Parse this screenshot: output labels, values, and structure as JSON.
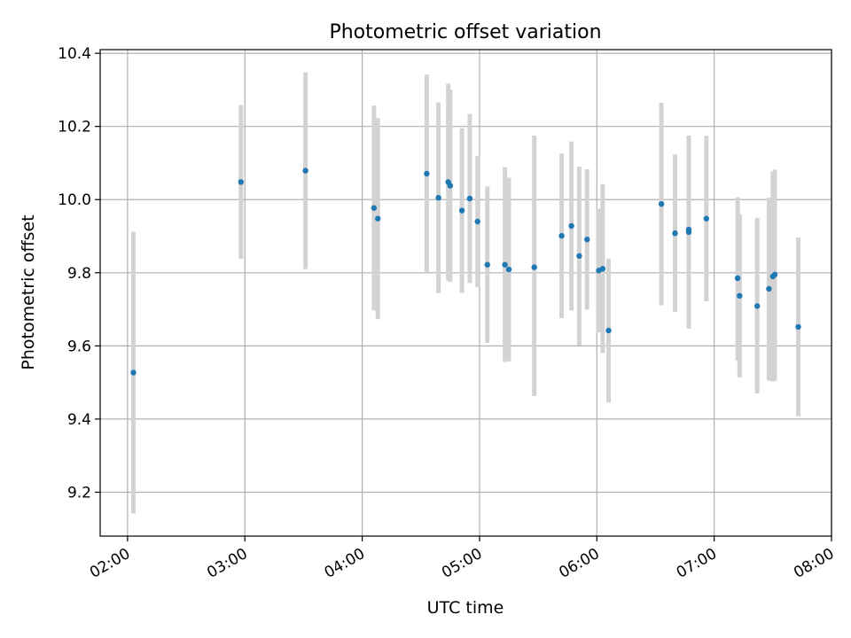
{
  "chart_data": {
    "type": "scatter",
    "title": "Photometric offset variation",
    "xlabel": "UTC time",
    "ylabel": "Photometric offset",
    "xlim": [
      "01:46",
      "08:00"
    ],
    "ylim": [
      9.08,
      10.41
    ],
    "xticks": [
      "02:00",
      "03:00",
      "04:00",
      "05:00",
      "06:00",
      "07:00",
      "08:00"
    ],
    "yticks": [
      "9.2",
      "9.4",
      "9.6",
      "9.8",
      "10.0",
      "10.2",
      "10.4"
    ],
    "grid": true,
    "colors": {
      "point": "#1f77b4",
      "errorbar": "#d3d3d3",
      "grid": "#b0b0b0"
    },
    "points": [
      {
        "x": "02:03",
        "y": 9.527,
        "ylo": 9.142,
        "yhi": 9.912
      },
      {
        "x": "02:58",
        "y": 10.048,
        "ylo": 9.838,
        "yhi": 10.258
      },
      {
        "x": "03:31",
        "y": 10.079,
        "ylo": 9.81,
        "yhi": 10.348
      },
      {
        "x": "04:06",
        "y": 9.977,
        "ylo": 9.697,
        "yhi": 10.257
      },
      {
        "x": "04:08",
        "y": 9.948,
        "ylo": 9.673,
        "yhi": 10.223
      },
      {
        "x": "04:33",
        "y": 10.071,
        "ylo": 9.8,
        "yhi": 10.342
      },
      {
        "x": "04:39",
        "y": 10.005,
        "ylo": 9.744,
        "yhi": 10.266
      },
      {
        "x": "04:44",
        "y": 10.048,
        "ylo": 9.779,
        "yhi": 10.317
      },
      {
        "x": "04:45",
        "y": 10.038,
        "ylo": 9.775,
        "yhi": 10.301
      },
      {
        "x": "04:51",
        "y": 9.97,
        "ylo": 9.745,
        "yhi": 10.195
      },
      {
        "x": "04:55",
        "y": 10.003,
        "ylo": 9.772,
        "yhi": 10.234
      },
      {
        "x": "04:59",
        "y": 9.94,
        "ylo": 9.76,
        "yhi": 10.12
      },
      {
        "x": "05:04",
        "y": 9.822,
        "ylo": 9.608,
        "yhi": 10.036
      },
      {
        "x": "05:13",
        "y": 9.822,
        "ylo": 9.556,
        "yhi": 10.088
      },
      {
        "x": "05:15",
        "y": 9.809,
        "ylo": 9.558,
        "yhi": 10.06
      },
      {
        "x": "05:28",
        "y": 9.815,
        "ylo": 9.463,
        "yhi": 10.175
      },
      {
        "x": "05:42",
        "y": 9.901,
        "ylo": 9.676,
        "yhi": 10.126
      },
      {
        "x": "05:47",
        "y": 9.928,
        "ylo": 9.697,
        "yhi": 10.159
      },
      {
        "x": "05:51",
        "y": 9.846,
        "ylo": 9.602,
        "yhi": 10.09
      },
      {
        "x": "05:55",
        "y": 9.891,
        "ylo": 9.699,
        "yhi": 10.083
      },
      {
        "x": "06:01",
        "y": 9.806,
        "ylo": 9.637,
        "yhi": 9.975
      },
      {
        "x": "06:03",
        "y": 9.811,
        "ylo": 9.58,
        "yhi": 10.042
      },
      {
        "x": "06:06",
        "y": 9.642,
        "ylo": 9.445,
        "yhi": 9.839
      },
      {
        "x": "06:33",
        "y": 9.988,
        "ylo": 9.711,
        "yhi": 10.265
      },
      {
        "x": "06:40",
        "y": 9.908,
        "ylo": 9.693,
        "yhi": 10.123
      },
      {
        "x": "06:47",
        "y": 9.911,
        "ylo": 9.647,
        "yhi": 10.175
      },
      {
        "x": "06:47",
        "y": 9.918,
        "ylo": 9.661,
        "yhi": 10.175
      },
      {
        "x": "06:56",
        "y": 9.948,
        "ylo": 9.722,
        "yhi": 10.174
      },
      {
        "x": "07:12",
        "y": 9.785,
        "ylo": 9.56,
        "yhi": 10.006
      },
      {
        "x": "07:13",
        "y": 9.737,
        "ylo": 9.514,
        "yhi": 9.96
      },
      {
        "x": "07:22",
        "y": 9.709,
        "ylo": 9.47,
        "yhi": 9.95
      },
      {
        "x": "07:28",
        "y": 9.756,
        "ylo": 9.505,
        "yhi": 10.005
      },
      {
        "x": "07:30",
        "y": 9.79,
        "ylo": 9.503,
        "yhi": 10.076
      },
      {
        "x": "07:31",
        "y": 9.795,
        "ylo": 9.505,
        "yhi": 10.082
      },
      {
        "x": "07:43",
        "y": 9.652,
        "ylo": 9.408,
        "yhi": 9.896
      }
    ]
  }
}
